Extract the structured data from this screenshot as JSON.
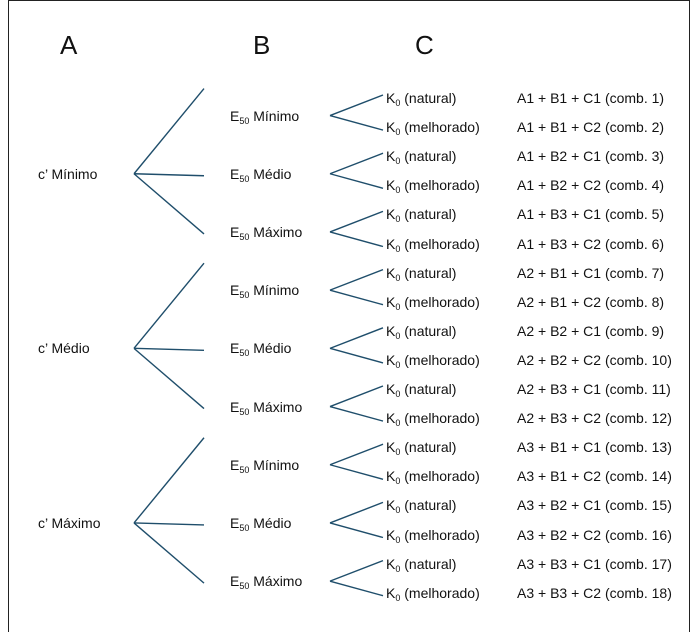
{
  "headers": [
    "A",
    "B",
    "C"
  ],
  "tree": [
    {
      "a_label": "c’ Mínimo",
      "b": [
        {
          "prefix": "E",
          "sub": "50",
          "label": "Mínimo",
          "c": [
            {
              "prefix": "K",
              "sub": "0",
              "label": "(natural)",
              "combo": "A1 + B1 + C1 (comb. 1)"
            },
            {
              "prefix": "K",
              "sub": "0",
              "label": "(melhorado)",
              "combo": "A1 + B1 + C2 (comb. 2)"
            }
          ]
        },
        {
          "prefix": "E",
          "sub": "50",
          "label": "Médio",
          "c": [
            {
              "prefix": "K",
              "sub": "0",
              "label": "(natural)",
              "combo": "A1 + B2 + C1 (comb. 3)"
            },
            {
              "prefix": "K",
              "sub": "0",
              "label": "(melhorado)",
              "combo": "A1 + B2 + C2 (comb. 4)"
            }
          ]
        },
        {
          "prefix": "E",
          "sub": "50",
          "label": "Máximo",
          "c": [
            {
              "prefix": "K",
              "sub": "0",
              "label": "(natural)",
              "combo": "A1 + B3 + C1 (comb. 5)"
            },
            {
              "prefix": "K",
              "sub": "0",
              "label": "(melhorado)",
              "combo": "A1 + B3 + C2 (comb. 6)"
            }
          ]
        }
      ]
    },
    {
      "a_label": "c’ Médio",
      "b": [
        {
          "prefix": "E",
          "sub": "50",
          "label": "Mínimo",
          "c": [
            {
              "prefix": "K",
              "sub": "0",
              "label": "(natural)",
              "combo": "A2 + B1 + C1 (comb. 7)"
            },
            {
              "prefix": "K",
              "sub": "0",
              "label": "(melhorado)",
              "combo": "A2 + B1 + C2 (comb. 8)"
            }
          ]
        },
        {
          "prefix": "E",
          "sub": "50",
          "label": "Médio",
          "c": [
            {
              "prefix": "K",
              "sub": "0",
              "label": "(natural)",
              "combo": "A2 + B2 + C1 (comb. 9)"
            },
            {
              "prefix": "K",
              "sub": "0",
              "label": "(melhorado)",
              "combo": "A2 + B2 + C2 (comb. 10)"
            }
          ]
        },
        {
          "prefix": "E",
          "sub": "50",
          "label": "Máximo",
          "c": [
            {
              "prefix": "K",
              "sub": "0",
              "label": "(natural)",
              "combo": "A2 + B3 + C1 (comb. 11)"
            },
            {
              "prefix": "K",
              "sub": "0",
              "label": "(melhorado)",
              "combo": "A2 + B3 + C2 (comb. 12)"
            }
          ]
        }
      ]
    },
    {
      "a_label": "c’ Máximo",
      "b": [
        {
          "prefix": "E",
          "sub": "50",
          "label": "Mínimo",
          "c": [
            {
              "prefix": "K",
              "sub": "0",
              "label": "(natural)",
              "combo": "A3 + B1 + C1 (comb. 13)"
            },
            {
              "prefix": "K",
              "sub": "0",
              "label": "(melhorado)",
              "combo": "A3 + B1 + C2 (comb. 14)"
            }
          ]
        },
        {
          "prefix": "E",
          "sub": "50",
          "label": "Médio",
          "c": [
            {
              "prefix": "K",
              "sub": "0",
              "label": "(natural)",
              "combo": "A3 + B2 + C1 (comb. 15)"
            },
            {
              "prefix": "K",
              "sub": "0",
              "label": "(melhorado)",
              "combo": "A3 + B2 + C2 (comb. 16)"
            }
          ]
        },
        {
          "prefix": "E",
          "sub": "50",
          "label": "Máximo",
          "c": [
            {
              "prefix": "K",
              "sub": "0",
              "label": "(natural)",
              "combo": "A3 + B3 + C1 (comb. 17)"
            },
            {
              "prefix": "K",
              "sub": "0",
              "label": "(melhorado)",
              "combo": "A3 + B3 + C2 (comb. 18)"
            }
          ]
        }
      ]
    }
  ],
  "colors": {
    "line": "#1f4e6b",
    "text": "#111111"
  }
}
